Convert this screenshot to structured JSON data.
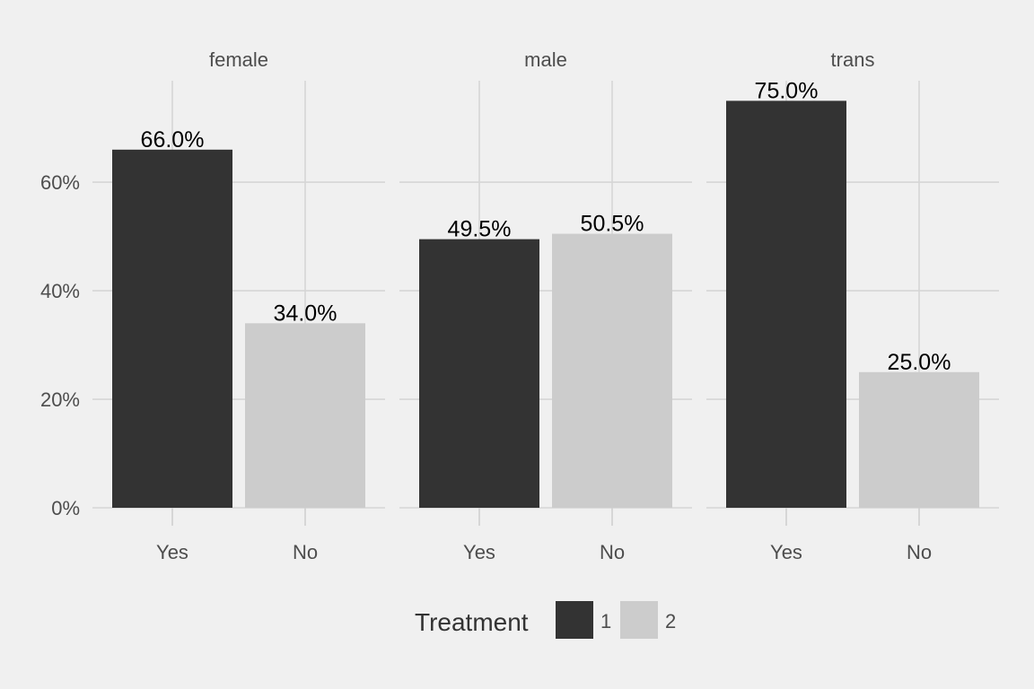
{
  "chart_data": {
    "type": "bar",
    "facets": [
      {
        "name": "female",
        "categories": [
          "Yes",
          "No"
        ],
        "values": [
          66.0,
          34.0
        ],
        "labels": [
          "66.0%",
          "34.0%"
        ]
      },
      {
        "name": "male",
        "categories": [
          "Yes",
          "No"
        ],
        "values": [
          49.5,
          50.5
        ],
        "labels": [
          "49.5%",
          "50.5%"
        ]
      },
      {
        "name": "trans",
        "categories": [
          "Yes",
          "No"
        ],
        "values": [
          75.0,
          25.0
        ],
        "labels": [
          "75.0%",
          "25.0%"
        ]
      }
    ],
    "series_fill": [
      "1",
      "2"
    ],
    "colors": [
      "#333333",
      "#cccccc"
    ],
    "yticks": [
      0,
      20,
      40,
      60
    ],
    "ytick_labels": [
      "0%",
      "20%",
      "40%",
      "60%"
    ],
    "ylim": [
      0,
      78.7
    ],
    "grid": true,
    "legend": {
      "title": "Treatment",
      "entries": [
        "1",
        "2"
      ],
      "placement": "bottom"
    }
  }
}
